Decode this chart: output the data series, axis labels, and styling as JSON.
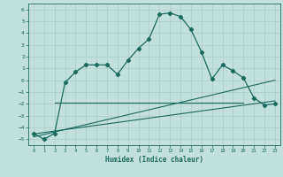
{
  "xlabel": "Humidex (Indice chaleur)",
  "xlim": [
    -0.5,
    23.5
  ],
  "ylim": [
    -5.5,
    6.5
  ],
  "background_color": "#c2e0dc",
  "grid_color": "#a8ccc8",
  "line_color": "#1a6b60",
  "curve_x": [
    0,
    1,
    2,
    3,
    4,
    5,
    6,
    7,
    8,
    9,
    10,
    11,
    12,
    13,
    14,
    15,
    16,
    17,
    18,
    19,
    20,
    21,
    22,
    23
  ],
  "curve_y": [
    -4.5,
    -5.0,
    -4.5,
    -0.2,
    0.7,
    1.3,
    1.3,
    1.3,
    0.5,
    1.7,
    2.7,
    3.5,
    5.6,
    5.7,
    5.4,
    4.3,
    2.4,
    0.1,
    1.3,
    0.8,
    0.2,
    -1.5,
    -2.1,
    -2.0
  ],
  "line1_x": [
    2,
    20
  ],
  "line1_y": [
    -1.9,
    -1.9
  ],
  "line2_x": [
    0,
    23
  ],
  "line2_y": [
    -4.55,
    -1.75
  ],
  "line3_x": [
    0,
    23
  ],
  "line3_y": [
    -4.8,
    0.0
  ],
  "yticks": [
    -5,
    -4,
    -3,
    -2,
    -1,
    0,
    1,
    2,
    3,
    4,
    5,
    6
  ],
  "xticks": [
    0,
    1,
    2,
    3,
    4,
    5,
    6,
    7,
    8,
    9,
    10,
    11,
    12,
    13,
    14,
    15,
    16,
    17,
    18,
    19,
    20,
    21,
    22,
    23
  ]
}
